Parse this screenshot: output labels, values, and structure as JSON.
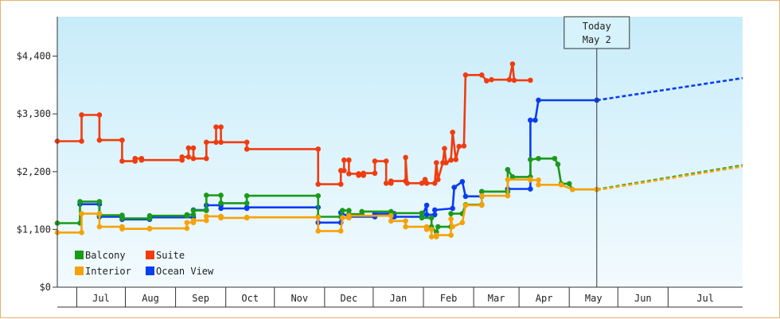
{
  "chart_data": {
    "type": "line",
    "y_ticks": [
      {
        "value": 0,
        "label": "$0"
      },
      {
        "value": 1100,
        "label": "$1,100"
      },
      {
        "value": 2200,
        "label": "$2,200"
      },
      {
        "value": 3300,
        "label": "$3,300"
      },
      {
        "value": 4400,
        "label": "$4,400"
      }
    ],
    "ylim": [
      0,
      5150
    ],
    "xlim": [
      "2021-06-03",
      "2022-07-31"
    ],
    "x_months": [
      {
        "label": "",
        "start": "2021-06-03",
        "end": "2021-06-15"
      },
      {
        "label": "Jul",
        "start": "2021-06-15",
        "end": "2021-07-15"
      },
      {
        "label": "Aug",
        "start": "2021-07-15",
        "end": "2021-08-15"
      },
      {
        "label": "Sep",
        "start": "2021-08-15",
        "end": "2021-09-15"
      },
      {
        "label": "Oct",
        "start": "2021-09-15",
        "end": "2021-10-15"
      },
      {
        "label": "Nov",
        "start": "2021-10-15",
        "end": "2021-11-15"
      },
      {
        "label": "Dec",
        "start": "2021-11-15",
        "end": "2021-12-15"
      },
      {
        "label": "Jan",
        "start": "2021-12-15",
        "end": "2022-01-15"
      },
      {
        "label": "Feb",
        "start": "2022-01-15",
        "end": "2022-02-15"
      },
      {
        "label": "Mar",
        "start": "2022-02-15",
        "end": "2022-03-15"
      },
      {
        "label": "Apr",
        "start": "2022-03-15",
        "end": "2022-04-15"
      },
      {
        "label": "May",
        "start": "2022-04-15",
        "end": "2022-05-15"
      },
      {
        "label": "Jun",
        "start": "2022-05-15",
        "end": "2022-06-15"
      },
      {
        "label": "Jul",
        "start": "2022-06-15",
        "end": "2022-07-31"
      }
    ],
    "today": {
      "date": "2022-05-02",
      "label_line1": "Today",
      "label_line2": "May 2"
    },
    "legend": [
      {
        "name": "Balcony",
        "color": "#1a9a1a"
      },
      {
        "name": "Suite",
        "color": "#f03c0f"
      },
      {
        "name": "Interior",
        "color": "#f5a20a"
      },
      {
        "name": "Ocean View",
        "color": "#0a3cf0"
      }
    ],
    "series": [
      {
        "name": "Suite",
        "color": "#f03c0f",
        "points": [
          [
            "2021-06-03",
            2780
          ],
          [
            "2021-06-18",
            2780
          ],
          [
            "2021-06-18",
            3280
          ],
          [
            "2021-06-29",
            3280
          ],
          [
            "2021-06-29",
            2800
          ],
          [
            "2021-07-13",
            2800
          ],
          [
            "2021-07-13",
            2400
          ],
          [
            "2021-07-21",
            2400
          ],
          [
            "2021-07-21",
            2450
          ],
          [
            "2021-07-25",
            2450
          ],
          [
            "2021-07-25",
            2420
          ],
          [
            "2021-08-19",
            2420
          ],
          [
            "2021-08-19",
            2480
          ],
          [
            "2021-08-23",
            2480
          ],
          [
            "2021-08-23",
            2650
          ],
          [
            "2021-08-26",
            2650
          ],
          [
            "2021-08-26",
            2450
          ],
          [
            "2021-09-03",
            2450
          ],
          [
            "2021-09-03",
            2760
          ],
          [
            "2021-09-09",
            2760
          ],
          [
            "2021-09-09",
            3050
          ],
          [
            "2021-09-12",
            3050
          ],
          [
            "2021-09-12",
            2760
          ],
          [
            "2021-09-28",
            2760
          ],
          [
            "2021-09-28",
            2630
          ],
          [
            "2021-11-11",
            2630
          ],
          [
            "2021-11-11",
            1960
          ],
          [
            "2021-11-25",
            1960
          ],
          [
            "2021-11-25",
            2220
          ],
          [
            "2021-11-27",
            2220
          ],
          [
            "2021-11-27",
            2420
          ],
          [
            "2021-11-30",
            2420
          ],
          [
            "2021-11-30",
            2160
          ],
          [
            "2021-12-06",
            2160
          ],
          [
            "2021-12-06",
            2130
          ],
          [
            "2021-12-09",
            2130
          ],
          [
            "2021-12-09",
            2170
          ],
          [
            "2021-12-16",
            2170
          ],
          [
            "2021-12-16",
            2400
          ],
          [
            "2021-12-23",
            2400
          ],
          [
            "2021-12-23",
            1980
          ],
          [
            "2021-12-26",
            1980
          ],
          [
            "2021-12-26",
            2020
          ],
          [
            "2022-01-04",
            2020
          ],
          [
            "2022-01-04",
            2470
          ],
          [
            "2022-01-05",
            1980
          ],
          [
            "2022-01-14",
            1980
          ],
          [
            "2022-01-16",
            2050
          ],
          [
            "2022-01-17",
            1980
          ],
          [
            "2022-01-22",
            1980
          ],
          [
            "2022-01-23",
            2370
          ],
          [
            "2022-01-24",
            2050
          ],
          [
            "2022-01-27",
            2370
          ],
          [
            "2022-01-28",
            2640
          ],
          [
            "2022-01-29",
            2370
          ],
          [
            "2022-02-01",
            2420
          ],
          [
            "2022-02-02",
            2950
          ],
          [
            "2022-02-04",
            2430
          ],
          [
            "2022-02-06",
            2680
          ],
          [
            "2022-02-09",
            2690
          ],
          [
            "2022-02-10",
            4040
          ],
          [
            "2022-02-20",
            4040
          ],
          [
            "2022-02-23",
            3930
          ],
          [
            "2022-02-26",
            3950
          ],
          [
            "2022-03-09",
            3950
          ],
          [
            "2022-03-11",
            4250
          ],
          [
            "2022-03-12",
            3940
          ],
          [
            "2022-03-22",
            3940
          ]
        ]
      },
      {
        "name": "Ocean View",
        "color": "#0a3cf0",
        "points": [
          [
            "2021-06-17",
            1580
          ],
          [
            "2021-06-29",
            1580
          ],
          [
            "2021-06-29",
            1340
          ],
          [
            "2021-07-13",
            1340
          ],
          [
            "2021-07-13",
            1290
          ],
          [
            "2021-07-30",
            1290
          ],
          [
            "2021-07-30",
            1330
          ],
          [
            "2021-08-26",
            1330
          ],
          [
            "2021-08-26",
            1470
          ],
          [
            "2021-09-03",
            1470
          ],
          [
            "2021-09-03",
            1560
          ],
          [
            "2021-09-12",
            1560
          ],
          [
            "2021-09-12",
            1500
          ],
          [
            "2021-09-28",
            1500
          ],
          [
            "2021-09-28",
            1520
          ],
          [
            "2021-11-11",
            1520
          ],
          [
            "2021-11-11",
            1230
          ],
          [
            "2021-11-25",
            1230
          ],
          [
            "2021-11-25",
            1420
          ],
          [
            "2021-11-30",
            1340
          ],
          [
            "2021-12-16",
            1340
          ],
          [
            "2021-12-16",
            1400
          ],
          [
            "2021-12-28",
            1400
          ],
          [
            "2021-12-28",
            1340
          ],
          [
            "2022-01-14",
            1340
          ],
          [
            "2022-01-17",
            1560
          ],
          [
            "2022-01-17",
            1380
          ],
          [
            "2022-01-22",
            1380
          ],
          [
            "2022-01-22",
            1470
          ],
          [
            "2022-02-02",
            1500
          ],
          [
            "2022-02-03",
            1900
          ],
          [
            "2022-02-08",
            2010
          ],
          [
            "2022-02-10",
            1730
          ],
          [
            "2022-02-20",
            1730
          ],
          [
            "2022-02-20",
            1820
          ],
          [
            "2022-03-08",
            1820
          ],
          [
            "2022-03-08",
            1870
          ],
          [
            "2022-03-22",
            1870
          ],
          [
            "2022-03-22",
            3180
          ],
          [
            "2022-03-25",
            3180
          ],
          [
            "2022-03-27",
            3560
          ],
          [
            "2022-05-02",
            3560
          ]
        ]
      },
      {
        "name": "Balcony",
        "color": "#1a9a1a",
        "points": [
          [
            "2021-06-03",
            1220
          ],
          [
            "2021-06-17",
            1220
          ],
          [
            "2021-06-17",
            1630
          ],
          [
            "2021-06-29",
            1630
          ],
          [
            "2021-06-29",
            1370
          ],
          [
            "2021-07-13",
            1370
          ],
          [
            "2021-07-13",
            1310
          ],
          [
            "2021-07-30",
            1310
          ],
          [
            "2021-07-30",
            1360
          ],
          [
            "2021-08-22",
            1360
          ],
          [
            "2021-08-22",
            1380
          ],
          [
            "2021-08-26",
            1380
          ],
          [
            "2021-08-26",
            1460
          ],
          [
            "2021-09-03",
            1460
          ],
          [
            "2021-09-03",
            1750
          ],
          [
            "2021-09-12",
            1750
          ],
          [
            "2021-09-12",
            1600
          ],
          [
            "2021-09-28",
            1600
          ],
          [
            "2021-09-28",
            1740
          ],
          [
            "2021-11-11",
            1740
          ],
          [
            "2021-11-11",
            1340
          ],
          [
            "2021-11-25",
            1340
          ],
          [
            "2021-11-26",
            1460
          ],
          [
            "2021-11-30",
            1460
          ],
          [
            "2021-11-30",
            1390
          ],
          [
            "2021-12-08",
            1390
          ],
          [
            "2021-12-08",
            1440
          ],
          [
            "2021-12-26",
            1440
          ],
          [
            "2021-12-26",
            1410
          ],
          [
            "2022-01-14",
            1410
          ],
          [
            "2022-01-14",
            1320
          ],
          [
            "2022-01-20",
            1320
          ],
          [
            "2022-01-20",
            1150
          ],
          [
            "2022-01-23",
            1050
          ],
          [
            "2022-01-24",
            1150
          ],
          [
            "2022-02-01",
            1150
          ],
          [
            "2022-02-01",
            1400
          ],
          [
            "2022-02-08",
            1400
          ],
          [
            "2022-02-10",
            1570
          ],
          [
            "2022-02-20",
            1570
          ],
          [
            "2022-02-20",
            1820
          ],
          [
            "2022-03-08",
            1820
          ],
          [
            "2022-03-08",
            2240
          ],
          [
            "2022-03-11",
            2100
          ],
          [
            "2022-03-22",
            2100
          ],
          [
            "2022-03-22",
            2430
          ],
          [
            "2022-03-27",
            2450
          ],
          [
            "2022-04-06",
            2450
          ],
          [
            "2022-04-08",
            2340
          ],
          [
            "2022-04-10",
            1970
          ],
          [
            "2022-04-15",
            1970
          ],
          [
            "2022-04-17",
            1860
          ],
          [
            "2022-05-02",
            1860
          ]
        ]
      },
      {
        "name": "Interior",
        "color": "#f5a20a",
        "points": [
          [
            "2021-06-03",
            1040
          ],
          [
            "2021-06-18",
            1040
          ],
          [
            "2021-06-18",
            1400
          ],
          [
            "2021-06-29",
            1400
          ],
          [
            "2021-06-29",
            1150
          ],
          [
            "2021-07-13",
            1150
          ],
          [
            "2021-07-13",
            1110
          ],
          [
            "2021-07-30",
            1110
          ],
          [
            "2021-07-30",
            1120
          ],
          [
            "2021-08-22",
            1120
          ],
          [
            "2021-08-22",
            1230
          ],
          [
            "2021-08-26",
            1230
          ],
          [
            "2021-08-26",
            1270
          ],
          [
            "2021-09-03",
            1270
          ],
          [
            "2021-09-03",
            1350
          ],
          [
            "2021-09-12",
            1350
          ],
          [
            "2021-09-12",
            1320
          ],
          [
            "2021-09-28",
            1320
          ],
          [
            "2021-09-28",
            1330
          ],
          [
            "2021-11-11",
            1330
          ],
          [
            "2021-11-11",
            1070
          ],
          [
            "2021-11-25",
            1070
          ],
          [
            "2021-11-26",
            1320
          ],
          [
            "2021-11-30",
            1320
          ],
          [
            "2021-11-30",
            1360
          ],
          [
            "2021-12-26",
            1360
          ],
          [
            "2021-12-26",
            1260
          ],
          [
            "2022-01-04",
            1260
          ],
          [
            "2022-01-04",
            1150
          ],
          [
            "2022-01-17",
            1150
          ],
          [
            "2022-01-17",
            1100
          ],
          [
            "2022-01-20",
            1100
          ],
          [
            "2022-01-20",
            960
          ],
          [
            "2022-01-23",
            960
          ],
          [
            "2022-01-23",
            990
          ],
          [
            "2022-02-01",
            990
          ],
          [
            "2022-02-01",
            1300
          ],
          [
            "2022-02-02",
            1150
          ],
          [
            "2022-02-08",
            1230
          ],
          [
            "2022-02-10",
            1560
          ],
          [
            "2022-02-20",
            1560
          ],
          [
            "2022-02-20",
            1740
          ],
          [
            "2022-03-08",
            1740
          ],
          [
            "2022-03-08",
            2050
          ],
          [
            "2022-03-22",
            2050
          ],
          [
            "2022-03-22",
            2040
          ],
          [
            "2022-03-27",
            2040
          ],
          [
            "2022-03-27",
            1950
          ],
          [
            "2022-04-10",
            1950
          ],
          [
            "2022-04-17",
            1860
          ],
          [
            "2022-05-02",
            1860
          ]
        ]
      }
    ],
    "projections": [
      {
        "name": "Ocean View",
        "color": "#0a3cf0",
        "points": [
          [
            "2022-05-02",
            3560
          ],
          [
            "2022-07-31",
            3980
          ]
        ]
      },
      {
        "name": "Balcony",
        "color": "#1a9a1a",
        "points": [
          [
            "2022-05-02",
            1860
          ],
          [
            "2022-07-31",
            2320
          ]
        ]
      },
      {
        "name": "Interior",
        "color": "#f5a20a",
        "points": [
          [
            "2022-05-02",
            1850
          ],
          [
            "2022-07-31",
            2300
          ]
        ]
      }
    ]
  }
}
